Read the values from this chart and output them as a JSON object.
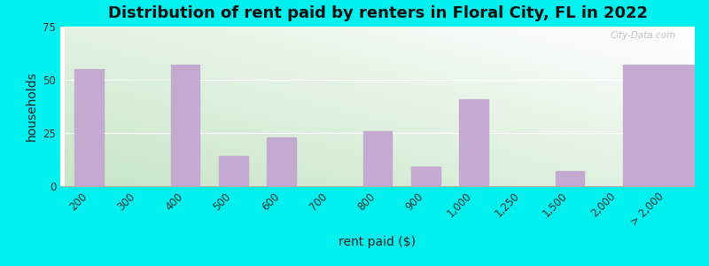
{
  "categories": [
    "200",
    "300",
    "400",
    "500",
    "600",
    "700",
    "800",
    "900",
    "1,000",
    "1,250",
    "1,500",
    "2,000",
    "> 2,000"
  ],
  "values": [
    55,
    0,
    57,
    14,
    23,
    0,
    26,
    9,
    41,
    0,
    7,
    0,
    57
  ],
  "bar_color": "#c4aad0",
  "title": "Distribution of rent paid by renters in Floral City, FL in 2022",
  "xlabel": "rent paid ($)",
  "ylabel": "households",
  "ylim": [
    0,
    75
  ],
  "yticks": [
    0,
    25,
    50,
    75
  ],
  "background_cyan": "#00f0f0",
  "title_fontsize": 13,
  "axis_label_fontsize": 10,
  "tick_fontsize": 8.5,
  "watermark": "City-Data.com"
}
